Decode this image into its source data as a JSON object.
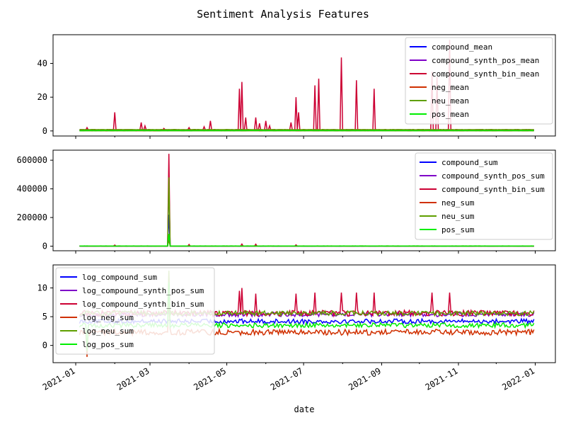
{
  "chart_data": {
    "title": "Sentiment Analysis Features",
    "xlabel": "date",
    "x_type": "date",
    "x_ticks": [
      "2021-01",
      "2021-03",
      "2021-05",
      "2021-07",
      "2021-09",
      "2021-11",
      "2022-01"
    ],
    "xlim": [
      "2020-12-14",
      "2022-01-17"
    ],
    "panels": [
      {
        "type": "line",
        "ylim": [
          -3,
          57
        ],
        "y_ticks": [
          0,
          20,
          40
        ],
        "y_tick_labels": [
          "0",
          "20",
          "40"
        ],
        "legend_position": "top-right",
        "series": [
          {
            "name": "compound_mean",
            "color": "#0000ff",
            "baseline": 0.3,
            "noise": 0.05,
            "spikes": []
          },
          {
            "name": "compound_synth_pos_mean",
            "color": "#7f00c8",
            "baseline": 0.55,
            "noise": 0.1,
            "spikes": [
              [
                "2021-01-10",
                1.5
              ]
            ]
          },
          {
            "name": "compound_synth_bin_mean",
            "color": "#cc0033",
            "baseline": 0.6,
            "noise": 0.2,
            "spikes": [
              [
                "2021-01-10",
                2
              ],
              [
                "2021-02-01",
                11
              ],
              [
                "2021-02-22",
                5
              ],
              [
                "2021-02-25",
                3
              ],
              [
                "2021-03-12",
                1.5
              ],
              [
                "2021-04-01",
                2
              ],
              [
                "2021-04-13",
                2.5
              ],
              [
                "2021-04-18",
                6
              ],
              [
                "2021-05-11",
                25
              ],
              [
                "2021-05-13",
                29
              ],
              [
                "2021-05-16",
                8
              ],
              [
                "2021-05-24",
                8
              ],
              [
                "2021-05-27",
                4.5
              ],
              [
                "2021-06-01",
                6
              ],
              [
                "2021-06-04",
                3
              ],
              [
                "2021-06-21",
                5
              ],
              [
                "2021-06-25",
                20
              ],
              [
                "2021-06-27",
                11
              ],
              [
                "2021-07-10",
                27
              ],
              [
                "2021-07-13",
                31
              ],
              [
                "2021-07-31",
                43.5
              ],
              [
                "2021-08-12",
                30
              ],
              [
                "2021-08-26",
                25
              ],
              [
                "2021-10-11",
                35
              ],
              [
                "2021-10-15",
                32
              ],
              [
                "2021-10-25",
                54
              ]
            ]
          },
          {
            "name": "neg_mean",
            "color": "#d03000",
            "baseline": 0.1,
            "noise": 0.03,
            "spikes": []
          },
          {
            "name": "neu_mean",
            "color": "#5f9f00",
            "baseline": 0.8,
            "noise": 0.05,
            "spikes": []
          },
          {
            "name": "pos_mean",
            "color": "#00ee00",
            "baseline": 0.15,
            "noise": 0.03,
            "spikes": []
          }
        ]
      },
      {
        "type": "line",
        "ylim": [
          -32000,
          670000
        ],
        "y_ticks": [
          0,
          200000,
          400000,
          600000
        ],
        "y_tick_labels": [
          "0",
          "200000",
          "400000",
          "600000"
        ],
        "legend_position": "top-right",
        "series": [
          {
            "name": "compound_sum",
            "color": "#0000ff",
            "baseline": 400,
            "noise": 200,
            "spikes": [
              [
                "2021-03-16",
                220000
              ]
            ]
          },
          {
            "name": "compound_synth_pos_sum",
            "color": "#7f00c8",
            "baseline": 700,
            "noise": 300,
            "spikes": [
              [
                "2021-03-16",
                460000
              ]
            ]
          },
          {
            "name": "compound_synth_bin_sum",
            "color": "#cc0033",
            "baseline": 900,
            "noise": 500,
            "spikes": [
              [
                "2021-02-01",
                8000
              ],
              [
                "2021-03-16",
                645000
              ],
              [
                "2021-04-01",
                12000
              ],
              [
                "2021-05-13",
                15000
              ],
              [
                "2021-05-24",
                14000
              ],
              [
                "2021-06-25",
                9000
              ]
            ]
          },
          {
            "name": "neg_sum",
            "color": "#d03000",
            "baseline": 200,
            "noise": 100,
            "spikes": [
              [
                "2021-03-16",
                45000
              ]
            ]
          },
          {
            "name": "neu_sum",
            "color": "#5f9f00",
            "baseline": 1500,
            "noise": 600,
            "spikes": [
              [
                "2021-03-16",
                480000
              ]
            ]
          },
          {
            "name": "pos_sum",
            "color": "#00ee00",
            "baseline": 500,
            "noise": 200,
            "spikes": [
              [
                "2021-03-16",
                85000
              ]
            ]
          }
        ]
      },
      {
        "type": "line",
        "ylim": [
          -3,
          14
        ],
        "y_ticks": [
          0,
          5,
          10
        ],
        "y_tick_labels": [
          "0",
          "5",
          "10"
        ],
        "legend_position": "top-left",
        "series": [
          {
            "name": "log_compound_sum",
            "color": "#0000ff",
            "baseline": 4.2,
            "noise": 0.4,
            "spikes": []
          },
          {
            "name": "log_compound_synth_pos_sum",
            "color": "#7f00c8",
            "baseline": 5.4,
            "noise": 0.4,
            "spikes": []
          },
          {
            "name": "log_compound_synth_bin_sum",
            "color": "#cc0033",
            "baseline": 5.6,
            "noise": 0.5,
            "spikes": [
              [
                "2021-05-11",
                9.5
              ],
              [
                "2021-05-13",
                10
              ],
              [
                "2021-05-24",
                9
              ],
              [
                "2021-06-25",
                9
              ],
              [
                "2021-07-10",
                9.2
              ],
              [
                "2021-07-31",
                9.2
              ],
              [
                "2021-08-12",
                9.2
              ],
              [
                "2021-08-26",
                9.2
              ],
              [
                "2021-10-11",
                9.2
              ],
              [
                "2021-10-25",
                9.2
              ]
            ]
          },
          {
            "name": "log_neg_sum",
            "color": "#d03000",
            "baseline": 2.3,
            "noise": 0.5,
            "spikes": [
              [
                "2021-01-10",
                -2
              ],
              [
                "2021-03-16",
                9
              ]
            ]
          },
          {
            "name": "log_neu_sum",
            "color": "#5f9f00",
            "baseline": 5.6,
            "noise": 0.4,
            "spikes": [
              [
                "2021-03-16",
                13
              ]
            ]
          },
          {
            "name": "log_pos_sum",
            "color": "#00ee00",
            "baseline": 3.5,
            "noise": 0.4,
            "spikes": [
              [
                "2021-01-10",
                -1
              ],
              [
                "2021-03-16",
                11
              ]
            ]
          }
        ]
      }
    ]
  }
}
